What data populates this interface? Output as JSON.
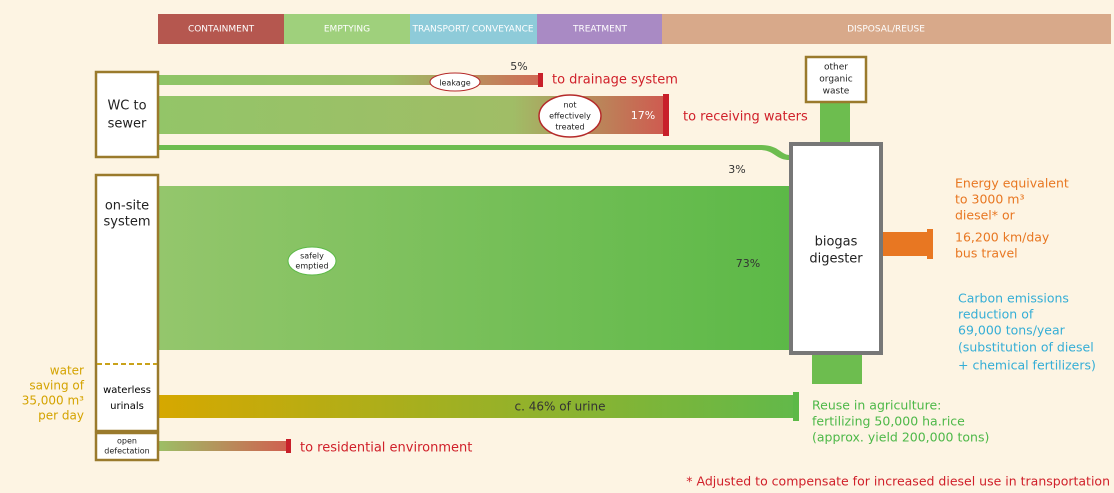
{
  "stages": [
    "CONTAINMENT",
    "EMPTYING",
    "TRANSPORT/ CONVEYANCE",
    "TREATMENT",
    "DISPOSAL/REUSE"
  ],
  "sources": {
    "wc": [
      "WC to",
      "sewer"
    ],
    "onsite": [
      "on-site",
      "system"
    ],
    "urinals": [
      "waterless",
      "urinals"
    ],
    "open": [
      "open",
      "defectation"
    ]
  },
  "water_saving": [
    "water",
    "saving of",
    "35,000 m³",
    "per day"
  ],
  "flows": {
    "leakage": {
      "tag": "leakage",
      "share": "5%",
      "destination": "to drainage system"
    },
    "untreated": {
      "tag": [
        "not",
        "effectively",
        "treated"
      ],
      "share": "17%",
      "destination": "to receiving waters"
    },
    "direct": {
      "share": "3%"
    },
    "emptied": {
      "tag": [
        "safely",
        "emptied"
      ],
      "share": "73%"
    },
    "urine": {
      "share": "c. 46% of urine"
    },
    "open": {
      "destination": "to residential environment"
    }
  },
  "other_waste": [
    "other",
    "organic",
    "waste"
  ],
  "digester": [
    "biogas",
    "digester"
  ],
  "energy": [
    "Energy equivalent",
    "to 3000 m³",
    "diesel* or",
    "16,200 km/day",
    "bus travel"
  ],
  "carbon": [
    "Carbon emissions",
    "reduction of",
    "69,000 tons/year",
    "(substitution of diesel",
    "+ chemical fertilizers)"
  ],
  "agriculture": [
    "Reuse in agriculture:",
    "fertilizing 50,000 ha.rice",
    "(approx. yield 200,000 tons)"
  ],
  "footnote": "* Adjusted to compensate for increased diesel use in transportation"
}
